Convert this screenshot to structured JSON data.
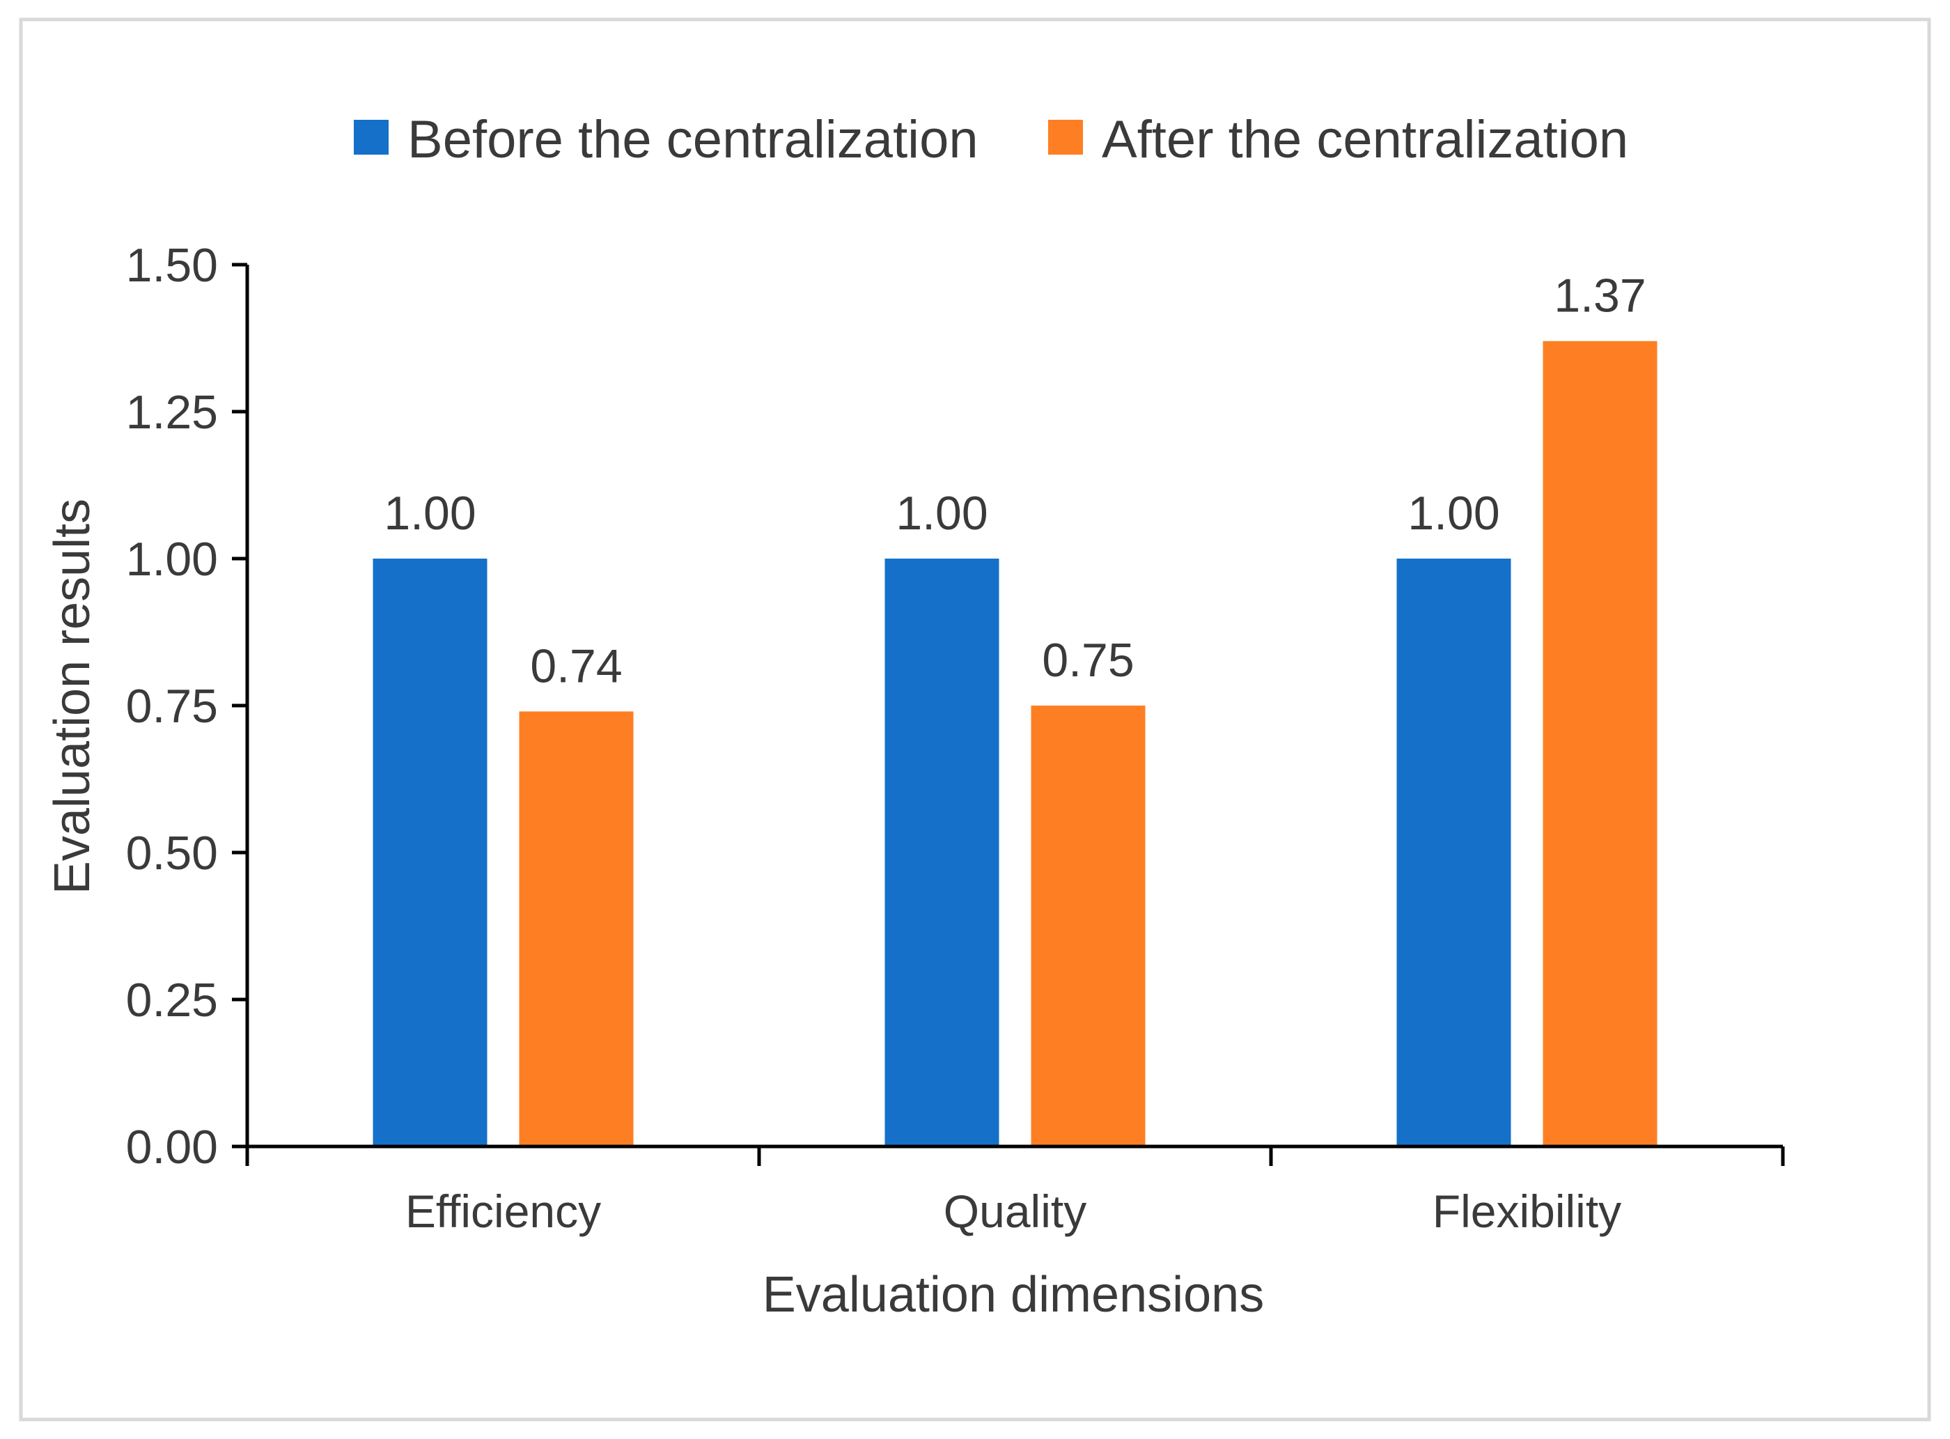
{
  "chart_data": {
    "type": "bar",
    "title": "",
    "xlabel": "Evaluation dimensions",
    "ylabel": "Evaluation results",
    "categories": [
      "Efficiency",
      "Quality",
      "Flexibility"
    ],
    "series": [
      {
        "name": "Before the centralization",
        "values": [
          1.0,
          1.0,
          1.0
        ],
        "labels": [
          "1.00",
          "1.00",
          "1.00"
        ],
        "color": "#1570C9"
      },
      {
        "name": "After the centralization",
        "values": [
          0.74,
          0.75,
          1.37
        ],
        "labels": [
          "0.74",
          "0.75",
          "1.37"
        ],
        "color": "#FE7F23"
      }
    ],
    "ylim": [
      0,
      1.5
    ],
    "yticks": [
      0,
      0.25,
      0.5,
      0.75,
      1.0,
      1.25,
      1.5
    ],
    "ytick_labels": [
      "0.00",
      "0.25",
      "0.50",
      "0.75",
      "1.00",
      "1.25",
      "1.50"
    ],
    "legend_position": "top-center",
    "grid": false
  }
}
